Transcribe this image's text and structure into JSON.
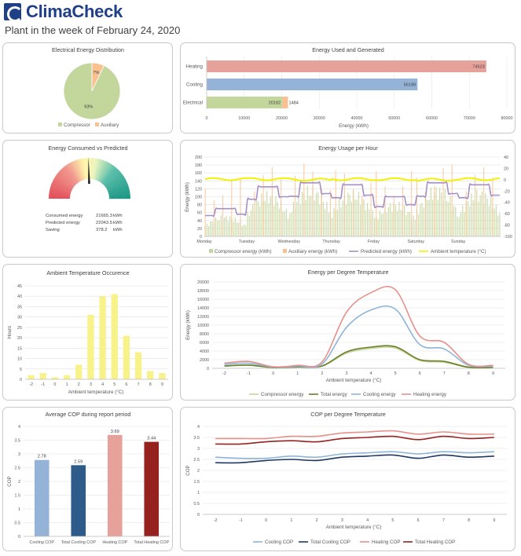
{
  "header": {
    "brand": "ClimaCheck",
    "subtitle": "Plant in the week of February 24, 2020"
  },
  "colors": {
    "brand": "#1f3f87",
    "compressor": "#c3d69b",
    "auxiliary": "#fac090",
    "heating": "#e6a19b",
    "cooling": "#95b3d7",
    "predicted": "#a58fc5",
    "ambient": "#f2f200",
    "total": "#6b7f2a",
    "cooling_line": "#8db4d9",
    "total_cooling_cop": "#1f3864",
    "heating_line": "#e6918b",
    "total_heating_cop": "#962220"
  },
  "chart_data": [
    {
      "id": "pie",
      "type": "pie",
      "title": "Electrical Energy Distribution",
      "slices": [
        {
          "name": "Compressor",
          "value": 93,
          "label": "93%"
        },
        {
          "name": "Auxiliary",
          "value": 7,
          "label": "7%"
        }
      ]
    },
    {
      "id": "energy_bars",
      "type": "bar",
      "orientation": "horizontal",
      "title": "Energy Used and Generated",
      "categories": [
        "Heating",
        "Cooling",
        "Electrical"
      ],
      "series": [
        {
          "name": "Heating",
          "values": [
            74523,
            null,
            null
          ]
        },
        {
          "name": "Cooling",
          "values": [
            null,
            56189,
            null
          ]
        },
        {
          "name": "Compressor",
          "values": [
            null,
            null,
            20182
          ]
        },
        {
          "name": "Auxiliary",
          "values": [
            null,
            null,
            1484
          ]
        }
      ],
      "data_labels": [
        "74523",
        "56189",
        "20182",
        "1484"
      ],
      "xlabel": "Energy (kWh)",
      "xlim": [
        0,
        80000
      ],
      "xticks": [
        "0",
        "10000",
        "20000",
        "30000",
        "40000",
        "50000",
        "60000",
        "70000",
        "80000"
      ]
    },
    {
      "id": "gauge",
      "type": "gauge",
      "title": "Energy Consumed vs Predicted",
      "value_ratio": 0.982,
      "rows": [
        {
          "label": "Consumed energy",
          "value": "21665.3",
          "unit": "kWh"
        },
        {
          "label": "Predicted energy",
          "value": "22043.5",
          "unit": "kWh"
        },
        {
          "label": "Saving",
          "value": "378.2",
          "unit": "kWh"
        }
      ]
    },
    {
      "id": "hourly",
      "type": "bar",
      "title": "Energy Usage per Hour",
      "ylabel": "Energy (kWh)",
      "ylim": [
        0,
        200
      ],
      "y2lim": [
        -100,
        40
      ],
      "yticks": [
        "0",
        "20",
        "40",
        "60",
        "80",
        "100",
        "120",
        "140",
        "160",
        "180",
        "200"
      ],
      "y2ticks": [
        "40",
        "20",
        "0",
        "-20",
        "-40",
        "-60",
        "-80",
        "-100"
      ],
      "categories": [
        "Monday",
        "Tuesday",
        "Wednesday",
        "Thursday",
        "Friday",
        "Saturday",
        "Sunday"
      ],
      "daily_profile": {
        "compressor": [
          55,
          115,
          130,
          120,
          90,
          130,
          120
        ],
        "predicted": [
          70,
          125,
          135,
          130,
          100,
          135,
          130
        ],
        "peak": [
          150,
          175,
          185,
          170,
          170,
          185,
          175
        ],
        "ambient": [
          1,
          1,
          0,
          1,
          1,
          0,
          1
        ]
      },
      "series_names": [
        "Compressor energy (kWh)",
        "Auxiliary energy (kWh)",
        "Predicted energy (kWh)",
        "Ambient temperature (°C)"
      ]
    },
    {
      "id": "ambient_hist",
      "type": "bar",
      "title": "Ambient Temperature Occurence",
      "categories": [
        "-2",
        "-1",
        "0",
        "1",
        "2",
        "3",
        "4",
        "5",
        "6",
        "7",
        "8",
        "9"
      ],
      "values": [
        2,
        3,
        1,
        2,
        7,
        31,
        40,
        41,
        21,
        13,
        4,
        3
      ],
      "xlabel": "Ambient temperature (°C)",
      "ylabel": "Hours",
      "ylim": [
        0,
        45
      ],
      "yticks": [
        "0",
        "5",
        "10",
        "15",
        "20",
        "25",
        "30",
        "35",
        "40",
        "45"
      ]
    },
    {
      "id": "energy_deg",
      "type": "line",
      "title": "Energy per Degree Temperature",
      "x": [
        -2,
        -1,
        0,
        1,
        2,
        3,
        4,
        5,
        6,
        7,
        8,
        9
      ],
      "xticks": [
        "-2",
        "-1",
        "0",
        "1",
        "2",
        "3",
        "4",
        "5",
        "6",
        "7",
        "8",
        "9"
      ],
      "series": [
        {
          "name": "Compressor energy",
          "values": [
            500,
            700,
            150,
            300,
            500,
            3500,
            4600,
            4700,
            1800,
            1400,
            200,
            150
          ]
        },
        {
          "name": "Total energy",
          "values": [
            550,
            750,
            170,
            330,
            550,
            3800,
            4900,
            5000,
            2000,
            1600,
            250,
            180
          ]
        },
        {
          "name": "Cooling energy",
          "values": [
            900,
            1200,
            250,
            500,
            1000,
            9500,
            13500,
            13700,
            5500,
            4500,
            700,
            500
          ]
        },
        {
          "name": "Heating energy",
          "values": [
            1200,
            1600,
            350,
            700,
            1500,
            13000,
            17500,
            18200,
            7500,
            6000,
            900,
            700
          ]
        }
      ],
      "xlabel": "Ambient temperature (°C)",
      "ylabel": "Energy (kWh)",
      "ylim": [
        0,
        20000
      ],
      "yticks": [
        "0",
        "2000",
        "4000",
        "6000",
        "8000",
        "10000",
        "12000",
        "14000",
        "16000",
        "18000",
        "20000"
      ]
    },
    {
      "id": "avg_cop",
      "type": "bar",
      "title": "Average COP during report period",
      "categories": [
        "Cooling COP",
        "Total Cooling COP",
        "Heating COP",
        "Total Heating COP"
      ],
      "values": [
        2.78,
        2.59,
        3.69,
        3.44
      ],
      "data_labels": [
        "2.78",
        "2.59",
        "3.69",
        "3.44"
      ],
      "ylabel": "COP",
      "ylim": [
        0,
        4
      ],
      "yticks": [
        "0",
        "0.5",
        "1",
        "1.5",
        "2",
        "2.5",
        "3",
        "3.5",
        "4"
      ]
    },
    {
      "id": "cop_deg",
      "type": "line",
      "title": "COP per Degree Temperature",
      "x": [
        -2,
        -1,
        0,
        1,
        2,
        3,
        4,
        5,
        6,
        7,
        8,
        9
      ],
      "xticks": [
        "-2",
        "-1",
        "0",
        "1",
        "2",
        "3",
        "4",
        "5",
        "6",
        "7",
        "8",
        "9"
      ],
      "series": [
        {
          "name": "Cooling COP",
          "values": [
            2.6,
            2.55,
            2.55,
            2.65,
            2.6,
            2.75,
            2.8,
            2.85,
            2.75,
            2.85,
            2.8,
            2.85
          ]
        },
        {
          "name": "Total Cooling COP",
          "values": [
            2.35,
            2.35,
            2.45,
            2.5,
            2.45,
            2.6,
            2.65,
            2.7,
            2.55,
            2.7,
            2.6,
            2.65
          ]
        },
        {
          "name": "Heating COP",
          "values": [
            3.45,
            3.45,
            3.45,
            3.55,
            3.55,
            3.7,
            3.75,
            3.8,
            3.65,
            3.75,
            3.65,
            3.65
          ]
        },
        {
          "name": "Total Heating COP",
          "values": [
            3.2,
            3.2,
            3.3,
            3.35,
            3.3,
            3.45,
            3.5,
            3.55,
            3.4,
            3.55,
            3.45,
            3.5
          ]
        }
      ],
      "xlabel": "Ambient temperature (°C)",
      "ylabel": "COP",
      "ylim": [
        0,
        4
      ],
      "yticks": [
        "0",
        "0.5",
        "1",
        "1.5",
        "2",
        "2.5",
        "3",
        "3.5",
        "4"
      ]
    }
  ]
}
